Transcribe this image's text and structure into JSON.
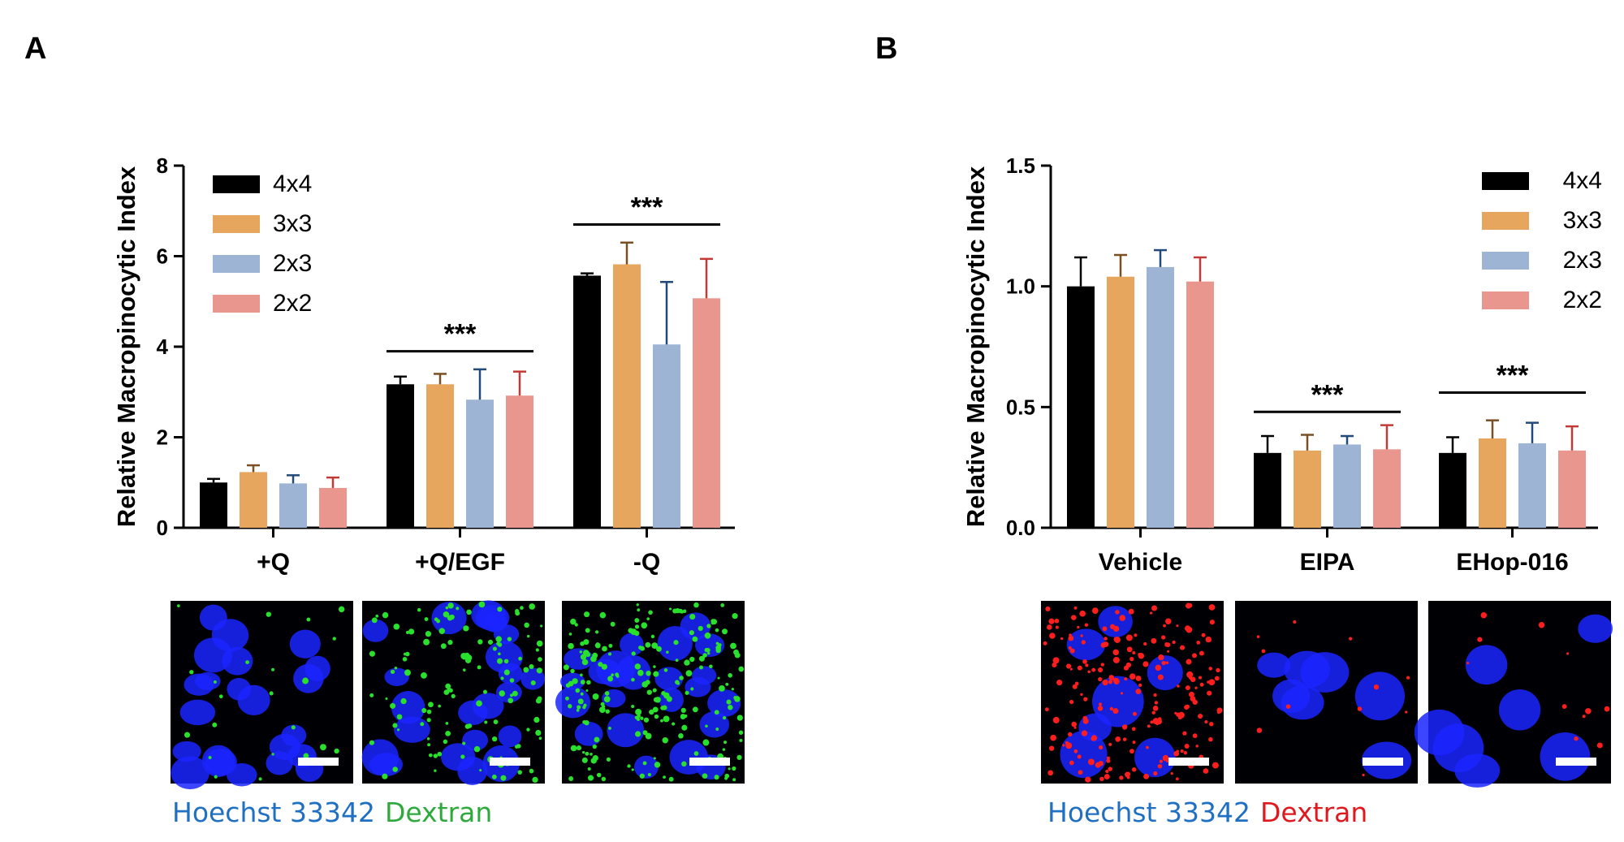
{
  "chart_data": [
    {
      "panel": "A",
      "type": "bar",
      "ylabel": "Relative Macropinocytic Index",
      "xlabel": "",
      "ylim": [
        0,
        8
      ],
      "yticks": [
        "0",
        "2",
        "4",
        "6",
        "8"
      ],
      "ytick_values": [
        0,
        2,
        4,
        6,
        8
      ],
      "categories": [
        "+Q",
        "+Q/EGF",
        "-Q"
      ],
      "series": [
        {
          "name": "4x4",
          "color": "#000000",
          "values": [
            1.0,
            3.17,
            5.57
          ],
          "errors": [
            0.08,
            0.17,
            0.05
          ]
        },
        {
          "name": "3x3",
          "color": "#E6A65D",
          "values": [
            1.23,
            3.17,
            5.82
          ],
          "errors": [
            0.15,
            0.23,
            0.48
          ]
        },
        {
          "name": "2x3",
          "color": "#9DB4D5",
          "values": [
            0.98,
            2.83,
            4.05
          ],
          "errors": [
            0.18,
            0.67,
            1.38
          ]
        },
        {
          "name": "2x2",
          "color": "#E8968E",
          "values": [
            0.88,
            2.92,
            5.07
          ],
          "errors": [
            0.23,
            0.53,
            0.87
          ]
        }
      ],
      "legend": "top-left",
      "significance": [
        {
          "label": "***",
          "category_from": 1,
          "category_to": 1,
          "y": 3.9
        },
        {
          "label": "***",
          "category_from": 2,
          "category_to": 2,
          "y": 6.7
        }
      ],
      "micrographs": {
        "count": 3,
        "nucleus_color": "#1a24ff",
        "dextran_color": "#29e02c",
        "dextran_density": [
          0.1,
          0.6,
          1.0
        ]
      },
      "caption": [
        {
          "text": "Hoechst 33342",
          "color": "#1F6FC2"
        },
        {
          "text": "Dextran",
          "color": "#2EAA3C"
        }
      ]
    },
    {
      "panel": "B",
      "type": "bar",
      "ylabel": "Relative Macropinocytic Index",
      "xlabel": "",
      "ylim": [
        0,
        1.5
      ],
      "yticks": [
        "0.0",
        "0.5",
        "1.0",
        "1.5"
      ],
      "ytick_values": [
        0,
        0.5,
        1.0,
        1.5
      ],
      "categories": [
        "Vehicle",
        "EIPA",
        "EHop-016"
      ],
      "series": [
        {
          "name": "4x4",
          "color": "#000000",
          "values": [
            1.0,
            0.31,
            0.31
          ],
          "errors": [
            0.12,
            0.07,
            0.065
          ]
        },
        {
          "name": "3x3",
          "color": "#E6A65D",
          "values": [
            1.04,
            0.32,
            0.37
          ],
          "errors": [
            0.09,
            0.065,
            0.075
          ]
        },
        {
          "name": "2x3",
          "color": "#9DB4D5",
          "values": [
            1.08,
            0.345,
            0.35
          ],
          "errors": [
            0.07,
            0.035,
            0.085
          ]
        },
        {
          "name": "2x2",
          "color": "#E8968E",
          "values": [
            1.02,
            0.325,
            0.32
          ],
          "errors": [
            0.1,
            0.1,
            0.1
          ]
        }
      ],
      "legend": "top-right",
      "significance": [
        {
          "label": "***",
          "category_from": 1,
          "category_to": 1,
          "y": 0.48
        },
        {
          "label": "***",
          "category_from": 2,
          "category_to": 2,
          "y": 0.56
        }
      ],
      "micrographs": {
        "count": 3,
        "nucleus_color": "#1a24ff",
        "dextran_color": "#ff1e1e",
        "dextran_density": [
          1.0,
          0.05,
          0.05
        ]
      },
      "caption": [
        {
          "text": "Hoechst 33342",
          "color": "#1F6FC2"
        },
        {
          "text": "Dextran",
          "color": "#E0191E"
        }
      ]
    }
  ]
}
